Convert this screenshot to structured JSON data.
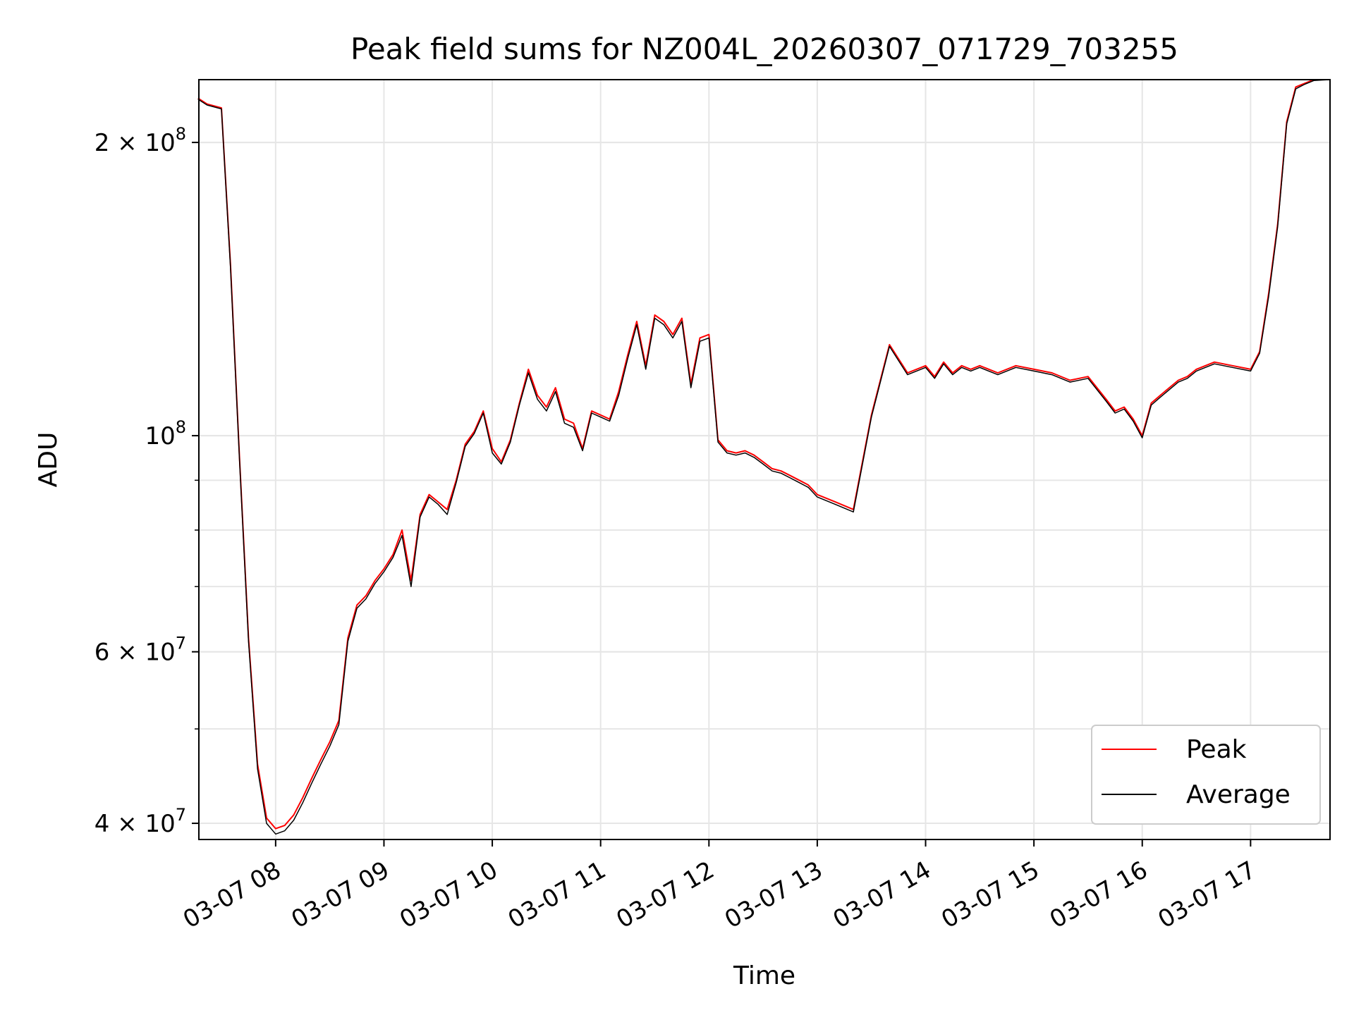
{
  "chart_data": {
    "type": "line",
    "title": "Peak field sums for NZ004L_20260307_071729_703255",
    "xlabel": "Time",
    "ylabel": "ADU",
    "y_scale": "log",
    "xlim": [
      "2026-03-07 07:17:29",
      "2026-03-07 17:44:00"
    ],
    "ylim": [
      38500000,
      232000000
    ],
    "x_ticks": [
      "03-07 08",
      "03-07 09",
      "03-07 10",
      "03-07 11",
      "03-07 12",
      "03-07 13",
      "03-07 14",
      "03-07 15",
      "03-07 16",
      "03-07 17"
    ],
    "y_ticks": [
      {
        "value": 40000000,
        "label": "4 × 10",
        "exp": "7"
      },
      {
        "value": 60000000,
        "label": "6 × 10",
        "exp": "7"
      },
      {
        "value": 100000000,
        "label": "10",
        "exp": "8"
      },
      {
        "value": 200000000,
        "label": "2 × 10",
        "exp": "8"
      }
    ],
    "grid": true,
    "legend_position": "lower right",
    "series_colors": {
      "Peak": "#ff0000",
      "Average": "#000000"
    },
    "series": [
      {
        "name": "Peak",
        "x": [
          "07:17",
          "07:22",
          "07:30",
          "07:35",
          "07:40",
          "07:45",
          "07:50",
          "07:55",
          "08:00",
          "08:05",
          "08:10",
          "08:15",
          "08:20",
          "08:25",
          "08:30",
          "08:35",
          "08:40",
          "08:45",
          "08:50",
          "08:55",
          "09:00",
          "09:05",
          "09:10",
          "09:15",
          "09:20",
          "09:25",
          "09:30",
          "09:35",
          "09:40",
          "09:45",
          "09:50",
          "09:55",
          "10:00",
          "10:05",
          "10:10",
          "10:15",
          "10:20",
          "10:25",
          "10:30",
          "10:35",
          "10:40",
          "10:45",
          "10:50",
          "10:55",
          "11:00",
          "11:05",
          "11:10",
          "11:15",
          "11:20",
          "11:25",
          "11:30",
          "11:35",
          "11:40",
          "11:45",
          "11:50",
          "11:55",
          "12:00",
          "12:05",
          "12:10",
          "12:15",
          "12:20",
          "12:25",
          "12:30",
          "12:35",
          "12:40",
          "12:45",
          "12:50",
          "12:55",
          "13:00",
          "13:10",
          "13:20",
          "13:30",
          "13:40",
          "13:50",
          "13:55",
          "14:00",
          "14:05",
          "14:10",
          "14:15",
          "14:20",
          "14:25",
          "14:30",
          "14:40",
          "14:50",
          "15:00",
          "15:10",
          "15:20",
          "15:30",
          "15:40",
          "15:45",
          "15:50",
          "15:55",
          "16:00",
          "16:05",
          "16:10",
          "16:15",
          "16:20",
          "16:25",
          "16:30",
          "16:40",
          "16:50",
          "17:00",
          "17:05",
          "17:10",
          "17:15",
          "17:20",
          "17:25",
          "17:30",
          "17:35",
          "17:40",
          "17:44"
        ],
        "y": [
          222000000,
          219000000,
          217000000,
          150000000,
          95000000,
          62000000,
          46000000,
          40500000,
          39500000,
          39800000,
          40800000,
          42500000,
          44500000,
          46500000,
          48500000,
          51000000,
          62000000,
          67000000,
          68500000,
          71000000,
          73000000,
          75500000,
          80000000,
          71000000,
          83000000,
          87000000,
          85500000,
          84000000,
          90000000,
          98000000,
          101000000,
          106000000,
          97000000,
          94000000,
          99000000,
          108000000,
          117000000,
          110000000,
          107000000,
          112000000,
          104000000,
          103000000,
          97000000,
          106000000,
          105000000,
          104000000,
          111000000,
          121000000,
          131000000,
          118000000,
          133000000,
          131000000,
          127000000,
          132000000,
          113000000,
          126000000,
          127000000,
          99000000,
          96500000,
          96000000,
          96500000,
          95500000,
          94000000,
          92500000,
          92000000,
          91000000,
          90000000,
          89000000,
          87000000,
          85500000,
          84000000,
          105000000,
          124000000,
          116000000,
          117000000,
          118000000,
          115000000,
          119000000,
          116000000,
          118000000,
          117000000,
          118000000,
          116000000,
          118000000,
          117000000,
          116000000,
          114000000,
          115000000,
          109000000,
          106000000,
          107000000,
          104000000,
          100000000,
          108000000,
          110000000,
          112000000,
          114000000,
          115000000,
          117000000,
          119000000,
          118000000,
          117000000,
          122000000,
          140000000,
          165000000,
          210000000,
          228000000,
          230000000,
          232000000,
          232000000,
          232000000
        ]
      },
      {
        "name": "Average",
        "x": [
          "07:17",
          "07:22",
          "07:30",
          "07:35",
          "07:40",
          "07:45",
          "07:50",
          "07:55",
          "08:00",
          "08:05",
          "08:10",
          "08:15",
          "08:20",
          "08:25",
          "08:30",
          "08:35",
          "08:40",
          "08:45",
          "08:50",
          "08:55",
          "09:00",
          "09:05",
          "09:10",
          "09:15",
          "09:20",
          "09:25",
          "09:30",
          "09:35",
          "09:40",
          "09:45",
          "09:50",
          "09:55",
          "10:00",
          "10:05",
          "10:10",
          "10:15",
          "10:20",
          "10:25",
          "10:30",
          "10:35",
          "10:40",
          "10:45",
          "10:50",
          "10:55",
          "11:00",
          "11:05",
          "11:10",
          "11:15",
          "11:20",
          "11:25",
          "11:30",
          "11:35",
          "11:40",
          "11:45",
          "11:50",
          "11:55",
          "12:00",
          "12:05",
          "12:10",
          "12:15",
          "12:20",
          "12:25",
          "12:30",
          "12:35",
          "12:40",
          "12:45",
          "12:50",
          "12:55",
          "13:00",
          "13:10",
          "13:20",
          "13:30",
          "13:40",
          "13:50",
          "13:55",
          "14:00",
          "14:05",
          "14:10",
          "14:15",
          "14:20",
          "14:25",
          "14:30",
          "14:40",
          "14:50",
          "15:00",
          "15:10",
          "15:20",
          "15:30",
          "15:40",
          "15:45",
          "15:50",
          "15:55",
          "16:00",
          "16:05",
          "16:10",
          "16:15",
          "16:20",
          "16:25",
          "16:30",
          "16:40",
          "16:50",
          "17:00",
          "17:05",
          "17:10",
          "17:15",
          "17:20",
          "17:25",
          "17:30",
          "17:35",
          "17:40",
          "17:44"
        ],
        "y": [
          221500000,
          218500000,
          216500000,
          149000000,
          94500000,
          61500000,
          45500000,
          40000000,
          39000000,
          39300000,
          40300000,
          42000000,
          44000000,
          46000000,
          48000000,
          50500000,
          61500000,
          66500000,
          68000000,
          70500000,
          72500000,
          75000000,
          79000000,
          70000000,
          82500000,
          86500000,
          85000000,
          83000000,
          89500000,
          97500000,
          100500000,
          105500000,
          96000000,
          93500000,
          98500000,
          107500000,
          116000000,
          109000000,
          106000000,
          111000000,
          103000000,
          102000000,
          96500000,
          105500000,
          104500000,
          103500000,
          110000000,
          120000000,
          130000000,
          117000000,
          132000000,
          130000000,
          126000000,
          131000000,
          112000000,
          125000000,
          126000000,
          98500000,
          96000000,
          95500000,
          96000000,
          95000000,
          93500000,
          92000000,
          91500000,
          90500000,
          89500000,
          88500000,
          86500000,
          85000000,
          83500000,
          104500000,
          123500000,
          115500000,
          116500000,
          117500000,
          114500000,
          118500000,
          115500000,
          117500000,
          116500000,
          117500000,
          115500000,
          117500000,
          116500000,
          115500000,
          113500000,
          114500000,
          108500000,
          105500000,
          106500000,
          103500000,
          99500000,
          107500000,
          109500000,
          111500000,
          113500000,
          114500000,
          116500000,
          118500000,
          117500000,
          116500000,
          121500000,
          139000000,
          164000000,
          209000000,
          227000000,
          229500000,
          231500000,
          231800000,
          232000000
        ]
      }
    ]
  }
}
